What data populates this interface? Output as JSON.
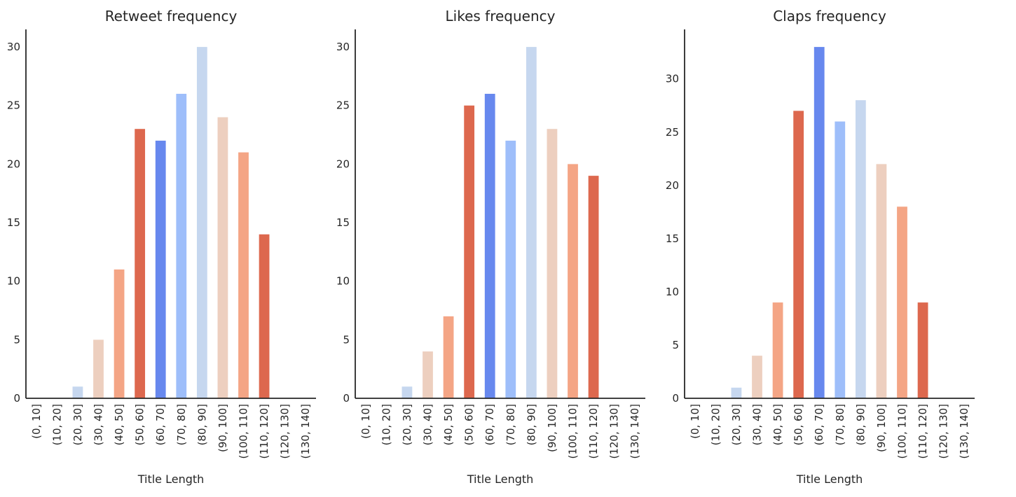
{
  "palette": [
    "#c6d7ef",
    "#edcfbf",
    "#f4a585",
    "#dd684e",
    "#6788ee",
    "#9ebefa"
  ],
  "chart_data": [
    {
      "type": "bar",
      "title": "Retweet frequency",
      "xlabel": "Title Length",
      "ylabel": "",
      "categories": [
        "(0, 10]",
        "(10, 20]",
        "(20, 30]",
        "(30, 40]",
        "(40, 50]",
        "(50, 60]",
        "(60, 70]",
        "(70, 80]",
        "(80, 90]",
        "(90, 100]",
        "(100, 110]",
        "(110, 120]",
        "(120, 130]",
        "(130, 140]"
      ],
      "values": [
        0,
        0,
        1,
        5,
        11,
        23,
        22,
        26,
        30,
        24,
        21,
        14,
        0,
        0
      ],
      "ylim": [
        0,
        31.5
      ],
      "yticks": [
        "0",
        "5",
        "10",
        "15",
        "20",
        "25",
        "30"
      ],
      "grid": false
    },
    {
      "type": "bar",
      "title": "Likes frequency",
      "xlabel": "Title Length",
      "ylabel": "",
      "categories": [
        "(0, 10]",
        "(10, 20]",
        "(20, 30]",
        "(30, 40]",
        "(40, 50]",
        "(50, 60]",
        "(60, 70]",
        "(70, 80]",
        "(80, 90]",
        "(90, 100]",
        "(100, 110]",
        "(110, 120]",
        "(120, 130]",
        "(130, 140]"
      ],
      "values": [
        0,
        0,
        1,
        4,
        7,
        25,
        26,
        22,
        30,
        23,
        20,
        19,
        0,
        0
      ],
      "ylim": [
        0,
        31.5
      ],
      "yticks": [
        "0",
        "5",
        "10",
        "15",
        "20",
        "25",
        "30"
      ],
      "grid": false
    },
    {
      "type": "bar",
      "title": "Claps frequency",
      "xlabel": "Title Length",
      "ylabel": "",
      "categories": [
        "(0, 10]",
        "(10, 20]",
        "(20, 30]",
        "(30, 40]",
        "(40, 50]",
        "(50, 60]",
        "(60, 70]",
        "(70, 80]",
        "(80, 90]",
        "(90, 100]",
        "(100, 110]",
        "(110, 120]",
        "(120, 130]",
        "(130, 140]"
      ],
      "values": [
        0,
        0,
        1,
        4,
        9,
        27,
        33,
        26,
        28,
        22,
        18,
        9,
        0,
        0
      ],
      "ylim": [
        0,
        34.65
      ],
      "yticks": [
        "0",
        "5",
        "10",
        "15",
        "20",
        "25",
        "30"
      ],
      "grid": false
    }
  ]
}
